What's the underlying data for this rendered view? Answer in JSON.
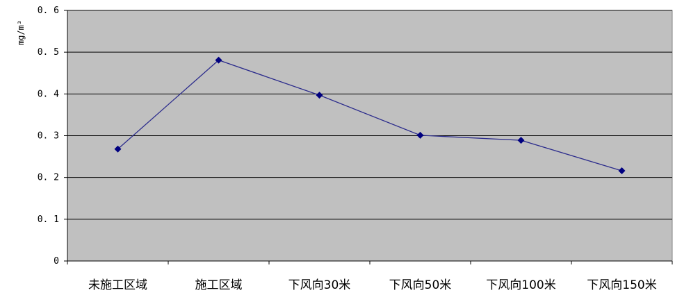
{
  "chart_data": {
    "type": "line",
    "title": "",
    "xlabel": "",
    "ylabel": "mg/m³",
    "categories": [
      "未施工区域",
      "施工区域",
      "下风向30米",
      "下风向50米",
      "下风向100米",
      "下风向150米"
    ],
    "series": [
      {
        "values": [
          0.268,
          0.481,
          0.397,
          0.301,
          0.289,
          0.216
        ]
      }
    ],
    "ylim": [
      0,
      0.6
    ],
    "yticks": [
      "0",
      "0. 1",
      "0. 2",
      "0. 3",
      "0. 4",
      "0. 5",
      "0. 6"
    ],
    "grid": true,
    "legend": "none",
    "colors": {
      "plot_background": "#c0c0c0",
      "line": "#2b2b8c",
      "marker": "#000080",
      "gridline": "#000000"
    }
  }
}
